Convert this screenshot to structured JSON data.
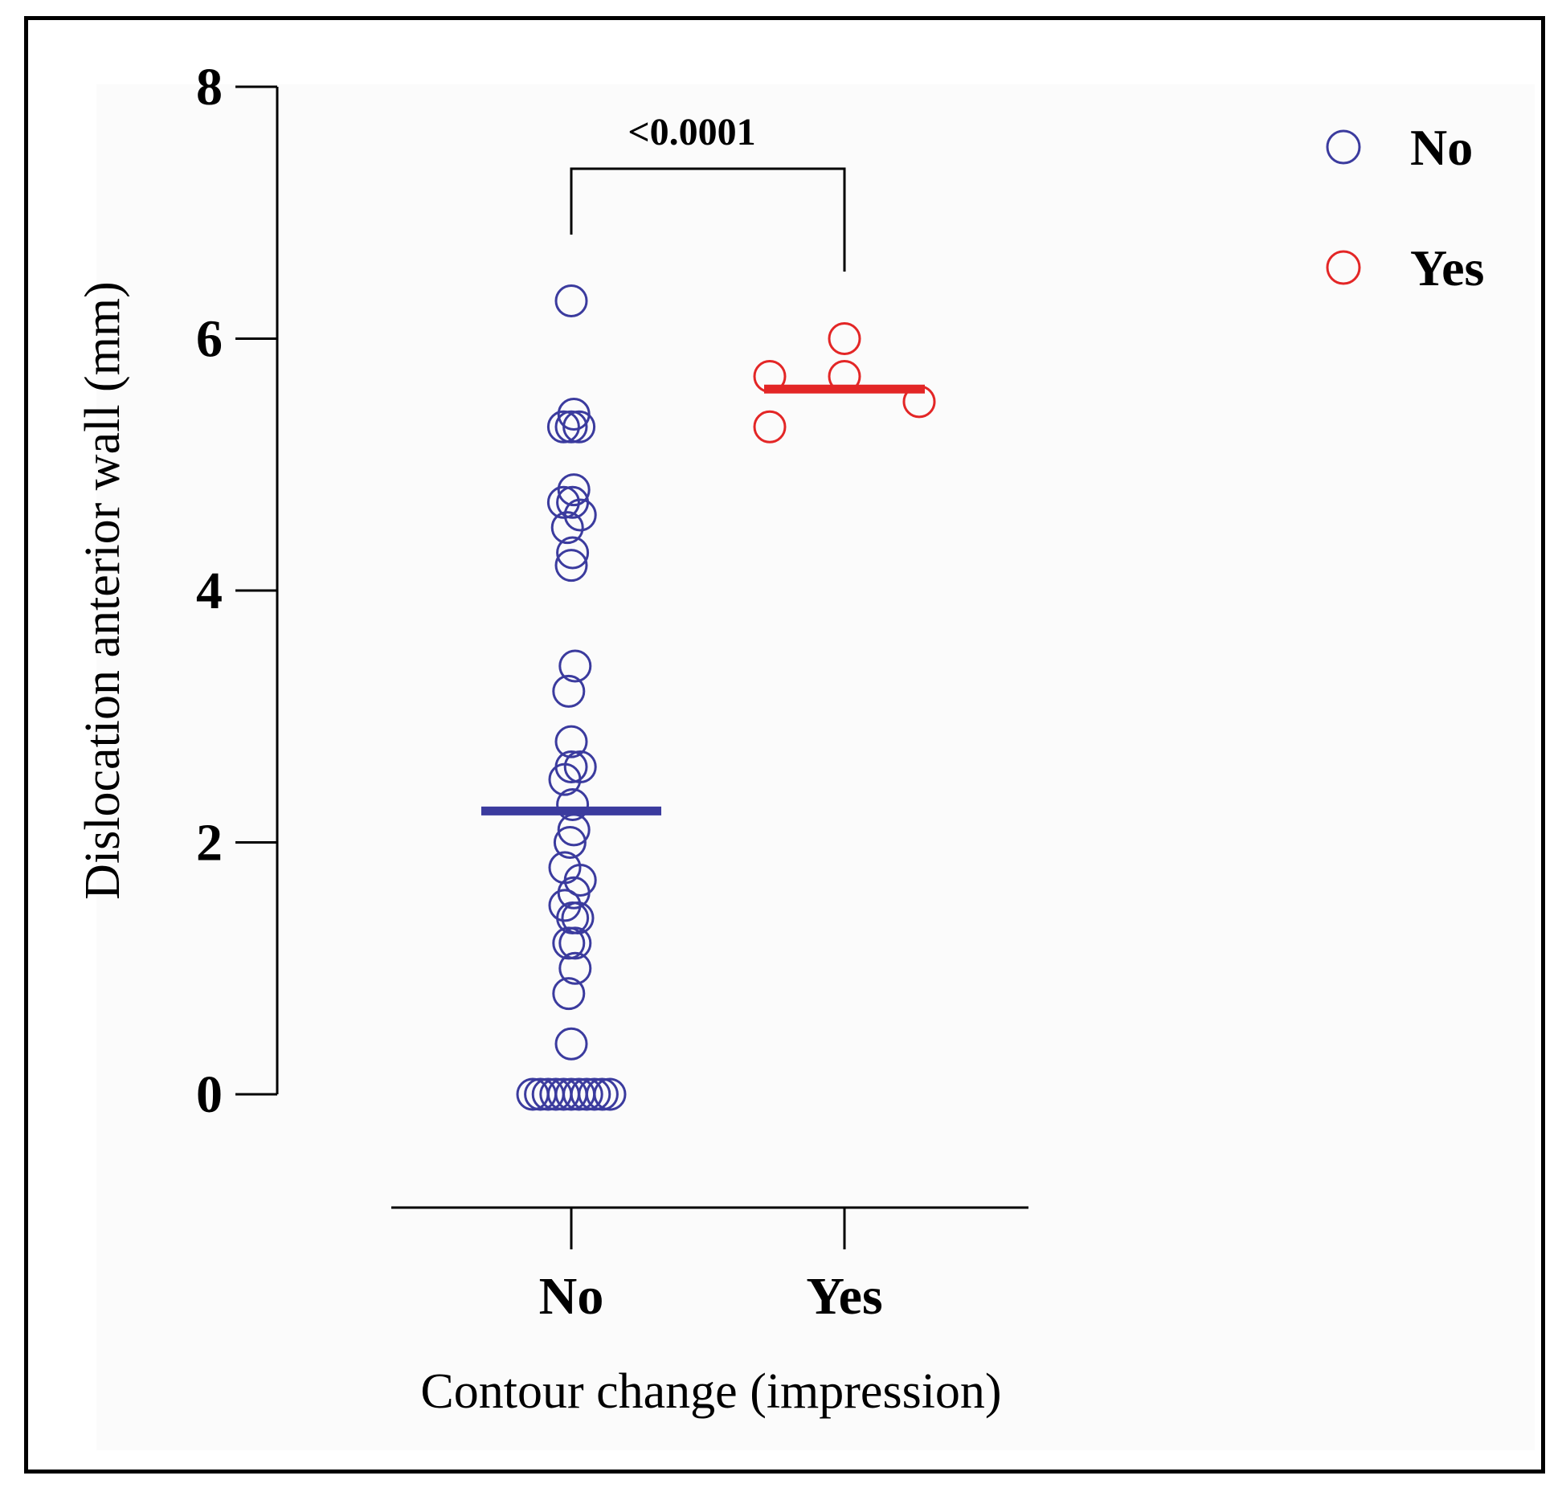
{
  "chart_data": {
    "type": "scatter",
    "subtype": "dot-plot with mean lines",
    "xlabel": "Contour change (impression)",
    "ylabel": "Dislocation anterior wall (mm)",
    "categories": [
      "No",
      "Yes"
    ],
    "ylim": [
      0,
      8
    ],
    "yticks": [
      "0",
      "2",
      "4",
      "6",
      "8"
    ],
    "grid": false,
    "legend_position": "top-right",
    "significance": {
      "between": [
        "No",
        "Yes"
      ],
      "label": "<0.0001"
    },
    "series": [
      {
        "name": "No",
        "color": "#3b3b9e",
        "mean": 2.25,
        "points": [
          {
            "value": 6.3,
            "offset": 0
          },
          {
            "value": 5.4,
            "offset": 0.2
          },
          {
            "value": 5.3,
            "offset": -0.6
          },
          {
            "value": 5.3,
            "offset": 0
          },
          {
            "value": 5.3,
            "offset": 0.6
          },
          {
            "value": 4.8,
            "offset": 0.2
          },
          {
            "value": 4.7,
            "offset": -0.6
          },
          {
            "value": 4.7,
            "offset": 0.1
          },
          {
            "value": 4.6,
            "offset": 0.7
          },
          {
            "value": 4.5,
            "offset": -0.3
          },
          {
            "value": 4.3,
            "offset": 0.1
          },
          {
            "value": 4.2,
            "offset": 0
          },
          {
            "value": 3.4,
            "offset": 0.3
          },
          {
            "value": 3.2,
            "offset": -0.2
          },
          {
            "value": 2.8,
            "offset": 0
          },
          {
            "value": 2.6,
            "offset": 0
          },
          {
            "value": 2.6,
            "offset": 0.7
          },
          {
            "value": 2.5,
            "offset": -0.5
          },
          {
            "value": 2.3,
            "offset": 0.1
          },
          {
            "value": 2.1,
            "offset": 0.2
          },
          {
            "value": 2.0,
            "offset": -0.1
          },
          {
            "value": 1.8,
            "offset": -0.5
          },
          {
            "value": 1.7,
            "offset": 0.7
          },
          {
            "value": 1.6,
            "offset": 0.2
          },
          {
            "value": 1.5,
            "offset": -0.5
          },
          {
            "value": 1.4,
            "offset": 0.1
          },
          {
            "value": 1.4,
            "offset": 0.5
          },
          {
            "value": 1.2,
            "offset": -0.2
          },
          {
            "value": 1.2,
            "offset": 0.3
          },
          {
            "value": 1.0,
            "offset": 0.3
          },
          {
            "value": 0.8,
            "offset": -0.2
          },
          {
            "value": 0.4,
            "offset": 0
          },
          {
            "value": 0,
            "offset": -3
          },
          {
            "value": 0,
            "offset": -2.4
          },
          {
            "value": 0,
            "offset": -1.8
          },
          {
            "value": 0,
            "offset": -1.2
          },
          {
            "value": 0,
            "offset": -0.6
          },
          {
            "value": 0,
            "offset": 0
          },
          {
            "value": 0,
            "offset": 0.6
          },
          {
            "value": 0,
            "offset": 1.2
          },
          {
            "value": 0,
            "offset": 1.8
          },
          {
            "value": 0,
            "offset": 2.4
          },
          {
            "value": 0,
            "offset": 3
          }
        ]
      },
      {
        "name": "Yes",
        "color": "#e32626",
        "mean": 5.6,
        "points": [
          {
            "value": 6.0,
            "offset": 0
          },
          {
            "value": 5.7,
            "offset": -3
          },
          {
            "value": 5.7,
            "offset": 0
          },
          {
            "value": 5.5,
            "offset": 3
          },
          {
            "value": 5.3,
            "offset": -3
          }
        ]
      }
    ]
  }
}
